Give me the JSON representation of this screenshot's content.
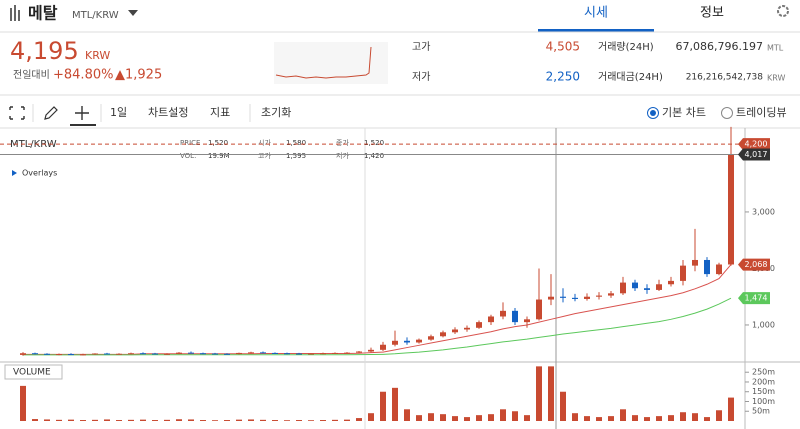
{
  "header": {
    "coin": "메탈",
    "market": "MTL/KRW",
    "tabs": [
      "시세",
      "정보"
    ]
  },
  "price": {
    "value": "4,195",
    "unit": "KRW",
    "change_label": "전일대비",
    "change_rate": "+84.80%",
    "change": "▲1,925"
  },
  "stats": [
    {
      "label": "고가",
      "value": "4,505"
    },
    {
      "label": "저가",
      "value": "2,250"
    },
    {
      "label": "거래량(24H)",
      "value": "67,086,796.197",
      "unit": "MTL"
    },
    {
      "label": "거래대금(24H)",
      "value": "216,216,542,738",
      "unit": "KRW"
    }
  ],
  "toolbar": {
    "interval": "1일",
    "items": [
      "차트설정",
      "지표",
      "초기화"
    ],
    "modes": [
      "기본 차트",
      "트레이딩뷰"
    ]
  },
  "chart": {
    "symbol": "MTL/KRW",
    "overlays": "Overlays",
    "volume_label": "VOLUME",
    "legend": [
      [
        "PRICE",
        "1,520"
      ],
      [
        "시가",
        "1,580"
      ],
      [
        "종가",
        "1,520"
      ],
      [
        "VOL.",
        "19.9M"
      ],
      [
        "고가",
        "1,595"
      ],
      [
        "저가",
        "1,420"
      ]
    ],
    "up_color": "#c84a31",
    "down_color": "#1261c4",
    "volume_color": "#c84a31",
    "ma_colors": [
      "#d9534f",
      "#5cc85c"
    ],
    "ylim": [
      380,
      4450
    ],
    "yticks": [
      {
        "value": 1000,
        "label": "1,000"
      },
      {
        "value": 2000,
        "label": "2,000"
      },
      {
        "value": 3000,
        "label": "3,000"
      }
    ],
    "tags": [
      {
        "value": 4200,
        "label": "4,200",
        "color": "#c84a31"
      },
      {
        "value": 4017,
        "label": "4,017",
        "color": "#333333"
      },
      {
        "value": 2068,
        "label": "2,068",
        "color": "#c84a31"
      },
      {
        "value": 1474,
        "label": "1,474",
        "color": "#5cc85c"
      }
    ],
    "vlim": [
      0,
      287
    ],
    "vticks": [
      {
        "value": 250,
        "label": "250m"
      },
      {
        "value": 200,
        "label": "200m"
      },
      {
        "value": 150,
        "label": "150m"
      },
      {
        "value": 100,
        "label": "100m"
      },
      {
        "value": 50,
        "label": "50m"
      }
    ],
    "candles": [
      [
        470,
        520,
        455,
        500
      ],
      [
        500,
        510,
        480,
        490
      ],
      [
        490,
        500,
        470,
        480
      ],
      [
        480,
        495,
        465,
        485
      ],
      [
        485,
        500,
        470,
        475
      ],
      [
        475,
        490,
        460,
        480
      ],
      [
        480,
        500,
        470,
        495
      ],
      [
        495,
        505,
        480,
        485
      ],
      [
        485,
        500,
        475,
        490
      ],
      [
        490,
        510,
        480,
        500
      ],
      [
        500,
        515,
        485,
        495
      ],
      [
        495,
        505,
        480,
        485
      ],
      [
        485,
        500,
        470,
        490
      ],
      [
        490,
        520,
        485,
        510
      ],
      [
        510,
        530,
        495,
        500
      ],
      [
        500,
        510,
        485,
        495
      ],
      [
        495,
        505,
        480,
        490
      ],
      [
        490,
        500,
        475,
        485
      ],
      [
        485,
        510,
        480,
        505
      ],
      [
        505,
        525,
        495,
        515
      ],
      [
        515,
        530,
        500,
        505
      ],
      [
        505,
        515,
        490,
        500
      ],
      [
        500,
        510,
        485,
        495
      ],
      [
        495,
        505,
        480,
        490
      ],
      [
        490,
        500,
        478,
        495
      ],
      [
        495,
        510,
        485,
        500
      ],
      [
        500,
        515,
        490,
        505
      ],
      [
        505,
        520,
        495,
        510
      ],
      [
        510,
        540,
        500,
        530
      ],
      [
        530,
        600,
        515,
        560
      ],
      [
        560,
        700,
        540,
        650
      ],
      [
        650,
        900,
        620,
        720
      ],
      [
        720,
        780,
        650,
        690
      ],
      [
        690,
        760,
        670,
        740
      ],
      [
        740,
        830,
        720,
        800
      ],
      [
        800,
        900,
        780,
        870
      ],
      [
        870,
        960,
        840,
        920
      ],
      [
        920,
        990,
        880,
        950
      ],
      [
        950,
        1080,
        930,
        1050
      ],
      [
        1050,
        1180,
        1000,
        1150
      ],
      [
        1150,
        1400,
        1100,
        1250
      ],
      [
        1250,
        1300,
        1000,
        1050
      ],
      [
        1050,
        1150,
        950,
        1100
      ],
      [
        1100,
        2000,
        1080,
        1450
      ],
      [
        1450,
        1900,
        1350,
        1500
      ],
      [
        1500,
        1650,
        1400,
        1480
      ],
      [
        1480,
        1550,
        1420,
        1460
      ],
      [
        1460,
        1560,
        1430,
        1500
      ],
      [
        1500,
        1580,
        1450,
        1520
      ],
      [
        1520,
        1600,
        1480,
        1560
      ],
      [
        1560,
        1850,
        1530,
        1750
      ],
      [
        1750,
        1800,
        1600,
        1650
      ],
      [
        1650,
        1720,
        1550,
        1620
      ],
      [
        1620,
        1800,
        1600,
        1720
      ],
      [
        1720,
        1850,
        1680,
        1780
      ],
      [
        1780,
        2150,
        1700,
        2050
      ],
      [
        2050,
        2700,
        1950,
        2150
      ],
      [
        2150,
        2200,
        1850,
        1900
      ],
      [
        1900,
        2100,
        1880,
        2070
      ],
      [
        2070,
        4505,
        2050,
        4017
      ]
    ],
    "volumes": [
      180,
      10,
      8,
      6,
      7,
      5,
      6,
      8,
      5,
      6,
      7,
      5,
      6,
      9,
      8,
      5,
      4,
      5,
      7,
      8,
      6,
      5,
      4,
      5,
      4,
      5,
      6,
      7,
      15,
      40,
      150,
      170,
      60,
      30,
      40,
      35,
      25,
      20,
      30,
      35,
      60,
      50,
      30,
      280,
      280,
      150,
      40,
      25,
      20,
      25,
      60,
      30,
      20,
      25,
      30,
      45,
      40,
      20,
      55,
      120
    ],
    "ma_red": [
      480,
      480,
      480,
      480,
      480,
      480,
      480,
      480,
      480,
      480,
      490,
      490,
      490,
      490,
      490,
      490,
      490,
      490,
      490,
      490,
      495,
      495,
      495,
      495,
      495,
      495,
      495,
      495,
      500,
      510,
      520,
      560,
      600,
      640,
      680,
      720,
      760,
      800,
      840,
      880,
      930,
      970,
      1000,
      1050,
      1100,
      1150,
      1200,
      1240,
      1280,
      1320,
      1360,
      1400,
      1440,
      1480,
      1520,
      1570,
      1640,
      1720,
      1820,
      2068
    ],
    "ma_green": [
      470,
      470,
      470,
      470,
      470,
      470,
      470,
      470,
      470,
      470,
      472,
      472,
      472,
      472,
      472,
      472,
      472,
      472,
      472,
      472,
      474,
      474,
      474,
      474,
      474,
      474,
      474,
      474,
      476,
      478,
      480,
      490,
      505,
      520,
      540,
      560,
      585,
      610,
      640,
      670,
      700,
      725,
      750,
      780,
      810,
      840,
      865,
      890,
      915,
      940,
      970,
      1000,
      1030,
      1060,
      1100,
      1150,
      1210,
      1280,
      1370,
      1474
    ]
  }
}
